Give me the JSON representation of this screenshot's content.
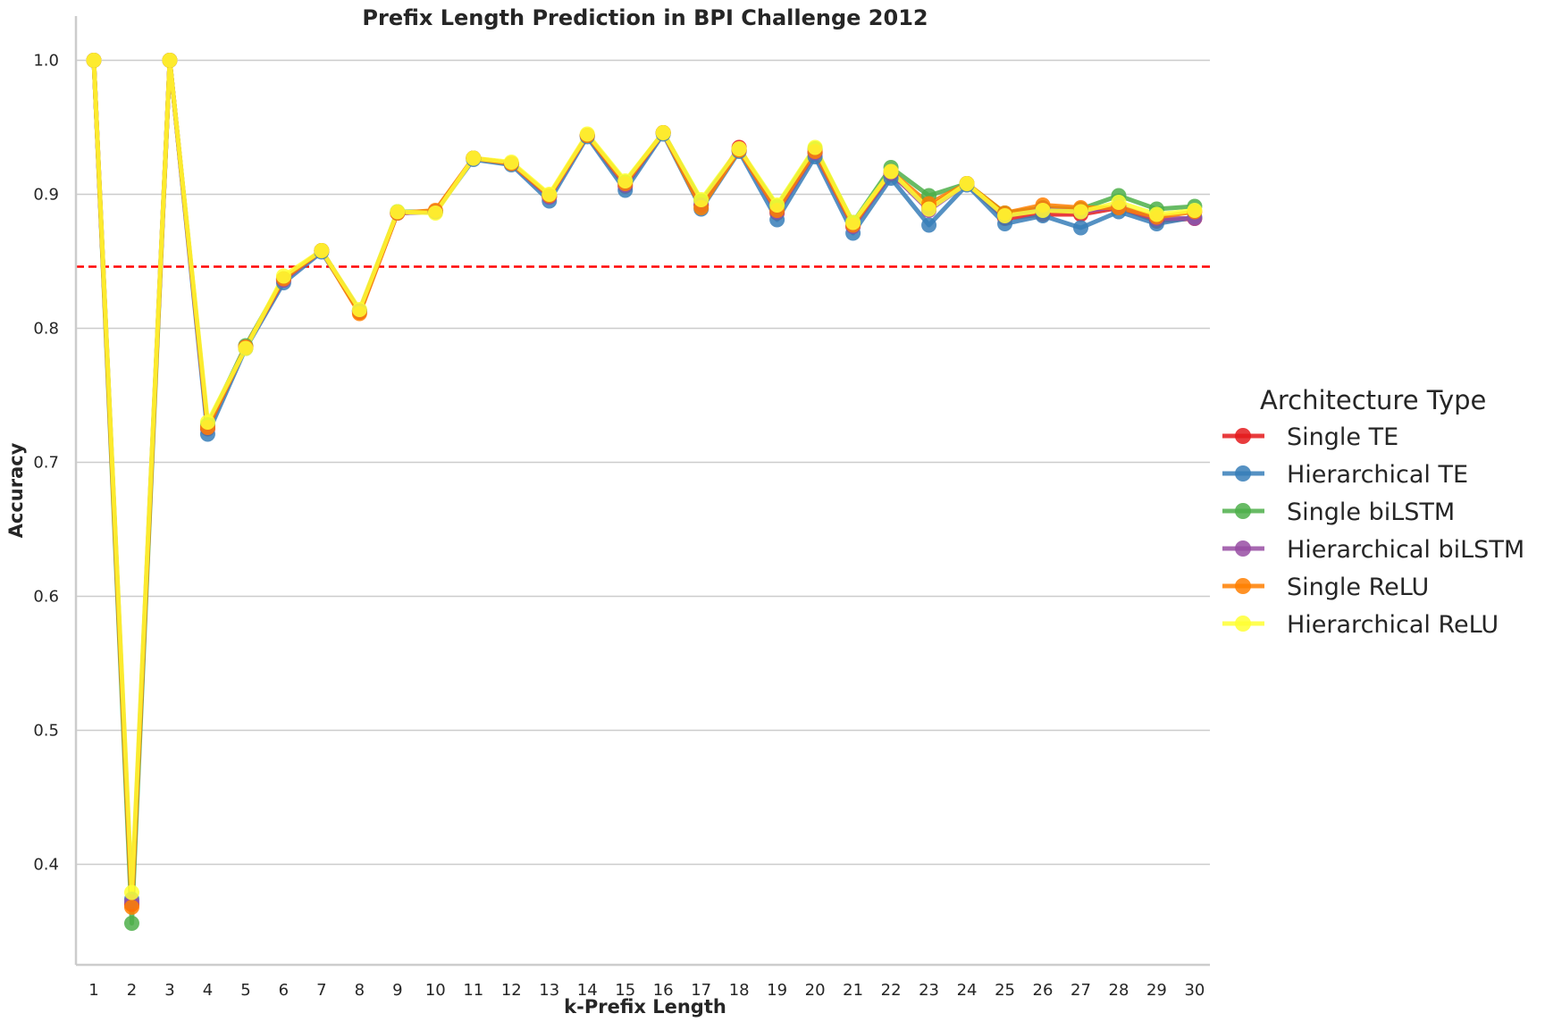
{
  "chart_data": {
    "type": "line",
    "title": "Prefix Length Prediction in BPI Challenge 2012",
    "xlabel": "k-Prefix Length",
    "ylabel": "Accuracy",
    "ylim": [
      0.325,
      1.033
    ],
    "yticks": [
      "0.4",
      "0.5",
      "0.6",
      "0.7",
      "0.8",
      "0.9",
      "1.0"
    ],
    "categories": [
      "1",
      "2",
      "3",
      "4",
      "5",
      "6",
      "7",
      "8",
      "9",
      "10",
      "11",
      "12",
      "13",
      "14",
      "15",
      "16",
      "17",
      "18",
      "19",
      "20",
      "21",
      "22",
      "23",
      "24",
      "25",
      "26",
      "27",
      "28",
      "29",
      "30"
    ],
    "grid": "horizontal",
    "legend": {
      "title": "Architecture Type",
      "placement": "center-right outside"
    },
    "reference_line": {
      "value": 0.846,
      "color": "#ff0000",
      "style": "dashed"
    },
    "series": [
      {
        "name": "Single TE",
        "color": "#e41a1c",
        "values": [
          1.0,
          0.37,
          1.0,
          0.725,
          0.786,
          0.836,
          0.858,
          0.812,
          0.886,
          0.887,
          0.927,
          0.923,
          0.898,
          0.944,
          0.906,
          0.946,
          0.892,
          0.935,
          0.886,
          0.931,
          0.876,
          0.915,
          0.89,
          0.908,
          0.882,
          0.885,
          0.885,
          0.89,
          0.88,
          0.882
        ]
      },
      {
        "name": "Hierarchical TE",
        "color": "#377eb8",
        "values": [
          1.0,
          0.374,
          1.0,
          0.721,
          0.785,
          0.834,
          0.857,
          0.813,
          0.886,
          0.887,
          0.926,
          0.922,
          0.895,
          0.943,
          0.903,
          0.945,
          0.889,
          0.932,
          0.881,
          0.928,
          0.871,
          0.912,
          0.877,
          0.907,
          0.878,
          0.884,
          0.875,
          0.887,
          0.878,
          0.883
        ]
      },
      {
        "name": "Single biLSTM",
        "color": "#4daf4a",
        "values": [
          1.0,
          0.356,
          1.0,
          0.728,
          0.787,
          0.837,
          0.858,
          0.813,
          0.887,
          0.887,
          0.927,
          0.923,
          0.899,
          0.944,
          0.909,
          0.946,
          0.895,
          0.933,
          0.891,
          0.934,
          0.879,
          0.92,
          0.899,
          0.908,
          0.886,
          0.89,
          0.889,
          0.899,
          0.889,
          0.891
        ]
      },
      {
        "name": "Hierarchical biLSTM",
        "color": "#984ea3",
        "values": [
          1.0,
          0.372,
          1.0,
          0.726,
          0.786,
          0.836,
          0.858,
          0.813,
          0.886,
          0.887,
          0.927,
          0.923,
          0.898,
          0.944,
          0.907,
          0.946,
          0.892,
          0.933,
          0.887,
          0.931,
          0.876,
          0.916,
          0.888,
          0.908,
          0.884,
          0.889,
          0.887,
          0.891,
          0.882,
          0.882
        ]
      },
      {
        "name": "Single ReLU",
        "color": "#ff7f00",
        "values": [
          1.0,
          0.368,
          1.0,
          0.726,
          0.786,
          0.837,
          0.858,
          0.811,
          0.886,
          0.888,
          0.927,
          0.923,
          0.899,
          0.944,
          0.908,
          0.946,
          0.89,
          0.933,
          0.888,
          0.932,
          0.877,
          0.917,
          0.893,
          0.908,
          0.886,
          0.892,
          0.89,
          0.89,
          0.883,
          0.887
        ]
      },
      {
        "name": "Hierarchical ReLU",
        "color": "#ffff33",
        "values": [
          1.0,
          0.379,
          1.0,
          0.73,
          0.785,
          0.839,
          0.858,
          0.814,
          0.887,
          0.886,
          0.927,
          0.924,
          0.9,
          0.945,
          0.91,
          0.946,
          0.896,
          0.934,
          0.892,
          0.935,
          0.879,
          0.917,
          0.889,
          0.908,
          0.884,
          0.888,
          0.887,
          0.894,
          0.885,
          0.888
        ]
      }
    ]
  }
}
